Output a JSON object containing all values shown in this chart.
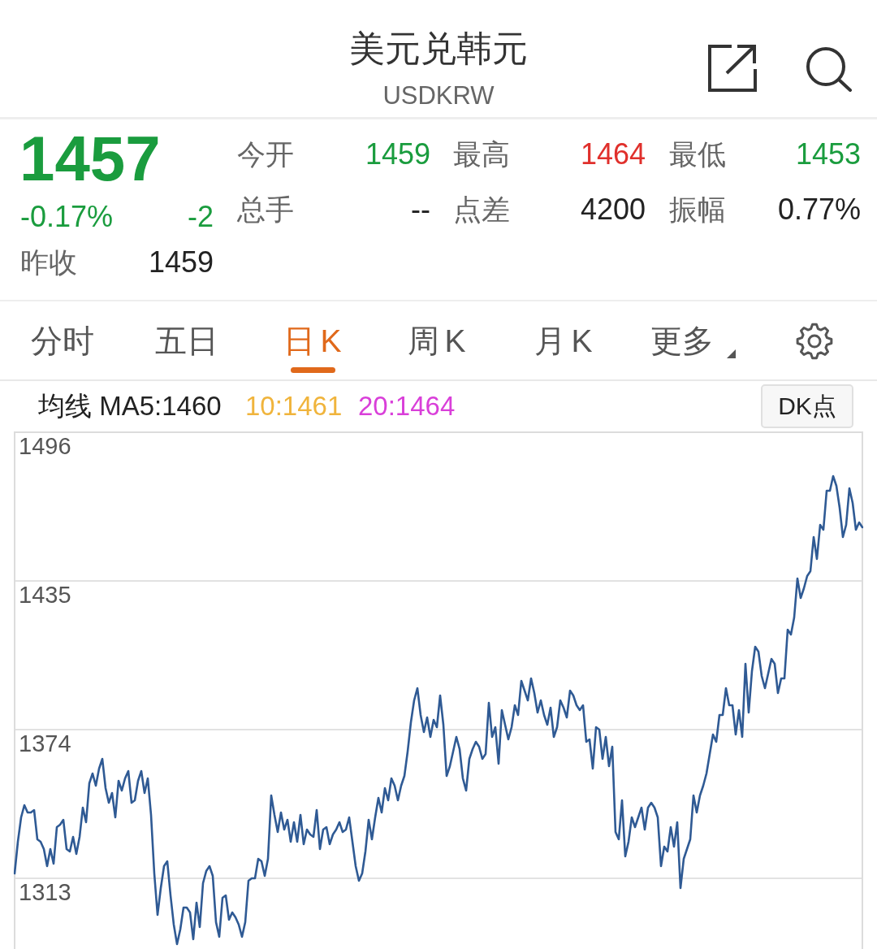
{
  "chart_data": {
    "type": "line",
    "title": "美元兑韩元",
    "subtitle": "USDKRW",
    "annotations": [
      "1457",
      "-0.17%",
      "-2",
      "昨收",
      "1459",
      "今开",
      "1459",
      "最高",
      "1464",
      "最低",
      "1453",
      "总手",
      "--",
      "点差",
      "4200",
      "振幅",
      "0.77%",
      "分时",
      "五日",
      "日K",
      "周K",
      "月K",
      "更多",
      "均线 MA5:1460",
      "10:1461",
      "20:1464",
      "DK点"
    ],
    "categories": [
      null,
      null,
      null,
      null,
      null,
      null,
      null,
      null,
      null,
      null,
      null,
      null,
      null,
      null,
      null,
      null,
      null,
      null,
      null,
      null,
      null,
      null,
      null,
      null,
      null,
      null,
      null,
      null,
      null,
      null,
      null,
      null,
      null,
      null,
      null,
      null,
      null,
      null,
      null,
      null,
      null,
      null,
      null,
      null,
      null,
      null,
      null,
      null,
      null,
      null,
      null,
      null,
      null,
      null,
      null,
      null,
      null,
      null,
      null,
      null,
      null,
      null,
      null,
      null,
      null,
      null,
      null,
      null,
      null,
      null,
      null,
      null,
      null,
      null,
      null,
      null,
      null,
      null,
      null,
      null,
      null,
      null,
      null,
      null,
      null,
      null,
      null,
      null,
      null,
      null,
      null,
      null,
      null,
      null,
      null,
      null,
      null,
      null,
      null,
      null,
      null,
      null,
      null,
      null,
      null,
      null,
      null,
      null,
      null,
      null,
      null,
      null,
      null,
      null,
      null,
      null,
      null,
      null,
      null,
      null,
      null,
      null,
      null,
      null,
      null,
      null,
      null,
      null,
      null,
      null,
      null,
      null,
      null,
      null,
      null,
      null,
      null,
      null,
      null,
      null,
      null,
      null,
      null,
      null,
      null,
      null,
      null,
      null,
      null,
      null,
      null,
      null,
      null,
      null,
      null,
      null,
      null,
      null,
      null,
      null,
      null,
      null,
      null,
      null,
      null,
      null,
      null,
      null,
      null,
      null,
      null,
      null,
      null,
      null,
      null,
      null,
      null,
      null,
      null,
      null,
      null,
      null,
      null,
      null,
      null,
      null,
      null,
      null,
      null,
      null,
      null,
      null,
      null,
      null,
      null,
      null,
      null,
      null,
      null,
      null,
      null,
      null,
      null,
      null,
      null,
      null,
      null,
      null,
      null,
      null,
      null,
      null,
      null,
      null,
      null,
      null,
      null,
      null,
      null,
      null,
      null,
      null,
      null,
      null,
      null,
      null,
      null,
      null,
      null,
      null,
      null,
      null,
      null,
      null,
      null,
      null,
      null,
      null,
      null,
      null,
      null,
      null,
      null,
      null,
      null,
      null,
      null,
      null,
      null,
      null,
      null,
      null,
      null,
      null,
      null,
      null,
      null,
      null,
      null,
      null,
      null,
      null
    ],
    "series": [
      {
        "color": "#2f5a94",
        "values": [
          1315,
          1328,
          1338,
          1343,
          1340,
          1340,
          1341,
          1329,
          1328,
          1325,
          1318,
          1325,
          1319,
          1334,
          1335,
          1337,
          1325,
          1324,
          1330,
          1323,
          1330,
          1342,
          1336,
          1352,
          1356,
          1351,
          1358,
          1362,
          1350,
          1344,
          1348,
          1338,
          1353,
          1349,
          1354,
          1357,
          1344,
          1345,
          1353,
          1357,
          1348,
          1354,
          1339,
          1315,
          1298,
          1309,
          1318,
          1320,
          1306,
          1294,
          1286,
          1292,
          1301,
          1301,
          1299,
          1288,
          1303,
          1293,
          1311,
          1316,
          1318,
          1314,
          1295,
          1289,
          1305,
          1306,
          1296,
          1299,
          1297,
          1294,
          1289,
          1295,
          1312,
          1313,
          1313,
          1321,
          1320,
          1314,
          1321,
          1347,
          1339,
          1332,
          1340,
          1333,
          1337,
          1328,
          1336,
          1328,
          1339,
          1327,
          1333,
          1331,
          1330,
          1341,
          1325,
          1333,
          1334,
          1327,
          1331,
          1333,
          1336,
          1332,
          1333,
          1338,
          1328,
          1318,
          1312,
          1315,
          1324,
          1337,
          1329,
          1338,
          1346,
          1340,
          1350,
          1345,
          1354,
          1351,
          1345,
          1351,
          1355,
          1365,
          1377,
          1386,
          1391,
          1380,
          1373,
          1379,
          1371,
          1378,
          1375,
          1388,
          1376,
          1355,
          1359,
          1365,
          1371,
          1366,
          1354,
          1349,
          1362,
          1366,
          1369,
          1367,
          1362,
          1364,
          1385,
          1371,
          1375,
          1360,
          1382,
          1376,
          1370,
          1375,
          1384,
          1380,
          1394,
          1390,
          1386,
          1395,
          1389,
          1381,
          1386,
          1380,
          1376,
          1383,
          1371,
          1375,
          1386,
          1383,
          1379,
          1390,
          1388,
          1384,
          1382,
          1384,
          1369,
          1370,
          1358,
          1375,
          1374,
          1362,
          1371,
          1359,
          1367,
          1332,
          1329,
          1345,
          1322,
          1328,
          1338,
          1334,
          1338,
          1342,
          1333,
          1342,
          1344,
          1342,
          1338,
          1318,
          1326,
          1324,
          1334,
          1326,
          1336,
          1309,
          1321,
          1325,
          1329,
          1347,
          1340,
          1347,
          1351,
          1356,
          1364,
          1372,
          1369,
          1380,
          1380,
          1391,
          1384,
          1384,
          1372,
          1382,
          1371,
          1401,
          1381,
          1398,
          1408,
          1406,
          1396,
          1391,
          1397,
          1403,
          1401,
          1389,
          1395,
          1395,
          1415,
          1413,
          1420,
          1436,
          1428,
          1432,
          1437,
          1439,
          1453,
          1444,
          1458,
          1456,
          1472,
          1472,
          1478,
          1474,
          1465,
          1453,
          1458,
          1473,
          1467,
          1456,
          1459,
          1457
        ]
      }
    ],
    "ylim": [
      1284,
      1496
    ],
    "yticks": [
      1313,
      1374,
      1435,
      1496
    ],
    "grid": "y",
    "legend": false
  }
}
